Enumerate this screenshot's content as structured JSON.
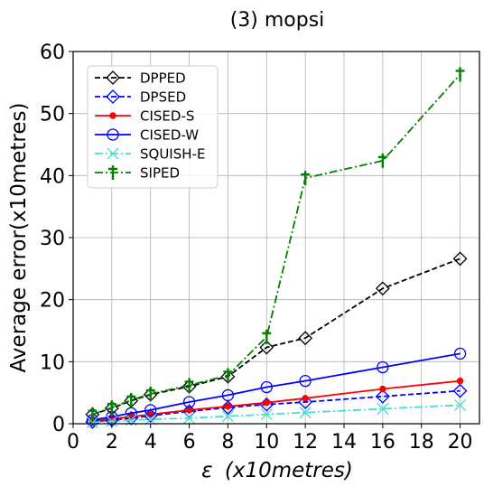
{
  "chart_data": {
    "type": "line",
    "title": "(3) mopsi",
    "xlabel_prefix": "ε",
    "xlabel_units": "(x10metres)",
    "ylabel": "Average error(x10metres)",
    "xlim": [
      0,
      21
    ],
    "ylim": [
      0,
      60
    ],
    "xticks": [
      "0",
      "2",
      "4",
      "6",
      "8",
      "10",
      "12",
      "14",
      "16",
      "18",
      "20"
    ],
    "yticks": [
      "0",
      "10",
      "20",
      "30",
      "40",
      "50",
      "60"
    ],
    "grid": true,
    "legend_position": "top-left",
    "x": [
      1,
      2,
      3,
      4,
      6,
      8,
      10,
      12,
      16,
      20
    ],
    "series": [
      {
        "name": "DPPED",
        "color": "#000000",
        "dash": "dashed",
        "marker": "diamond",
        "values": [
          1.5,
          2.5,
          3.7,
          4.7,
          6.0,
          7.6,
          12.3,
          13.8,
          21.8,
          26.6
        ]
      },
      {
        "name": "DPSED",
        "color": "#0000ff",
        "dash": "dashed",
        "marker": "diamond",
        "values": [
          0.3,
          0.6,
          0.9,
          1.3,
          2.0,
          2.6,
          3.1,
          3.5,
          4.4,
          5.3
        ]
      },
      {
        "name": "CISED-S",
        "color": "#ff0000",
        "dash": "solid",
        "marker": "dot",
        "values": [
          0.4,
          0.8,
          1.1,
          1.5,
          2.2,
          2.8,
          3.4,
          4.1,
          5.6,
          6.9
        ]
      },
      {
        "name": "CISED-W",
        "color": "#0000ff",
        "dash": "solid",
        "marker": "circle",
        "values": [
          0.6,
          1.1,
          1.7,
          2.2,
          3.5,
          4.6,
          5.9,
          6.9,
          9.1,
          11.3
        ]
      },
      {
        "name": "SQUISH-E",
        "color": "#40e0d0",
        "dash": "dashdot",
        "marker": "x",
        "values": [
          0.2,
          0.4,
          0.6,
          0.7,
          0.9,
          1.2,
          1.5,
          1.8,
          2.4,
          3.0
        ]
      },
      {
        "name": "SIPED",
        "color": "#008000",
        "dash": "dashdot",
        "marker": "dagger",
        "values": [
          1.5,
          2.6,
          3.8,
          4.8,
          6.2,
          7.8,
          14.0,
          39.6,
          42.4,
          56.3
        ]
      }
    ]
  }
}
